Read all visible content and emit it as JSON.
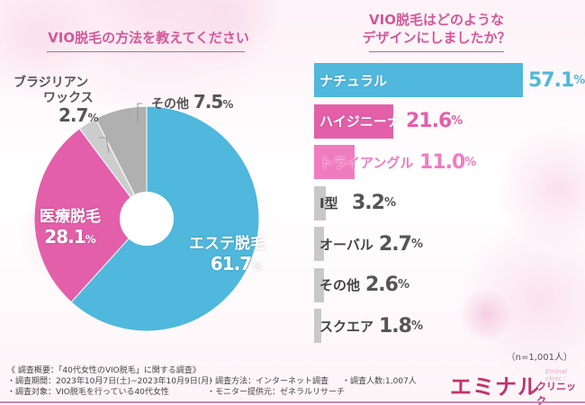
{
  "left": {
    "title": "VIO脱毛の方法を教えてください",
    "labels": {
      "brazilian_line1": "ブラジリアン",
      "brazilian_line2": "ワックス",
      "brazilian_num": "2.7",
      "other_name": "その他",
      "other_num": "7.5",
      "medical_name": "医療脱毛",
      "medical_num": "28.1",
      "esthe_name": "エステ脱毛",
      "esthe_num": "61.7",
      "unit": "%"
    }
  },
  "right": {
    "title_line1": "VIO脱毛はどのような",
    "title_line2": "デザインにしましたか？",
    "sample": "（n=1,001人）",
    "unit": "%"
  },
  "chart_data": [
    {
      "type": "pie",
      "title": "VIO脱毛の方法を教えてください",
      "donut": true,
      "start_angle": "12 o'clock, clockwise",
      "slices": [
        {
          "label": "エステ脱毛",
          "value": 61.7,
          "color": "#4fb8dc"
        },
        {
          "label": "医療脱毛",
          "value": 28.1,
          "color": "#e45fa9"
        },
        {
          "label": "ブラジリアンワックス",
          "value": 2.7,
          "color": "#cdcdcd"
        },
        {
          "label": "その他",
          "value": 7.5,
          "color": "#b0b0b0"
        }
      ]
    },
    {
      "type": "bar",
      "orientation": "horizontal",
      "title": "VIO脱毛はどのようなデザインにしましたか？",
      "categories": [
        "ナチュラル",
        "ハイジニーナ",
        "トライアングル",
        "I型",
        "オーバル",
        "その他",
        "スクエア"
      ],
      "values": [
        57.1,
        21.6,
        11.0,
        3.2,
        2.7,
        2.6,
        1.8
      ],
      "value_labels": [
        "57.1",
        "21.6",
        "11.0",
        "3.2",
        "2.7",
        "2.6",
        "1.8"
      ],
      "colors": [
        "#4fb8dc",
        "#e45fa9",
        "#f07cc0",
        "#c8c8c8",
        "#c8c8c8",
        "#c8c8c8",
        "#c8c8c8"
      ],
      "label_colors": [
        "#4fb8dc",
        "#e45fa9",
        "#f07cc0",
        "#555555",
        "#555555",
        "#555555",
        "#555555"
      ],
      "xlim": [
        0,
        57.1
      ],
      "note": "（n=1,001人）"
    }
  ],
  "footer": {
    "summary": "《 調査概要：「40代女性のVIO脱毛」に関する調査》",
    "period": "・調査期間：2023年10月7日(土)~2023年10月9日(月)",
    "method": "・調査方法：インターネット調査",
    "count": "・調査人数:1,007人",
    "target": "・調査対象：VIO脱毛を行っている40代女性",
    "provider": "・モニター提供元：ゼネラルリサーチ"
  },
  "logo": {
    "main": "エミナル",
    "sub": "クリニック",
    "en": "Eminal clinic♡"
  }
}
